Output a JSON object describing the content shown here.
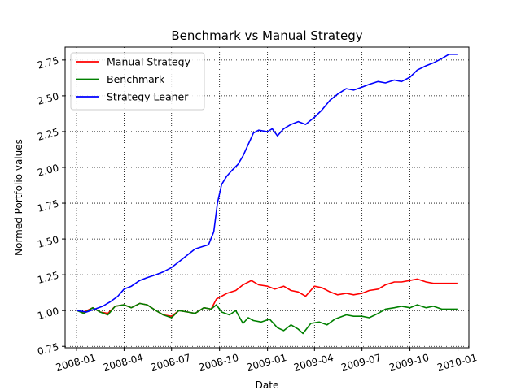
{
  "chart_data": {
    "type": "line",
    "title": "Benchmark vs Manual Strategy",
    "xlabel": "Date",
    "ylabel": "Normed Portfolio values",
    "grid": true,
    "legend_placement": "top-left",
    "x_ticks": [
      "2008-01",
      "2008-04",
      "2008-07",
      "2008-10",
      "2009-01",
      "2009-04",
      "2009-07",
      "2009-10",
      "2010-01"
    ],
    "y_ticks": [
      "0.75",
      "1.00",
      "1.25",
      "1.50",
      "1.75",
      "2.00",
      "2.25",
      "2.50",
      "2.75"
    ],
    "ylim": [
      0.74,
      2.84
    ],
    "xlim": [
      "2007-12-10",
      "2010-01-22"
    ],
    "series": [
      {
        "name": "Manual Strategy",
        "color": "#ff0000",
        "points": [
          [
            "2008-01-02",
            1.0
          ],
          [
            "2008-01-15",
            0.99
          ],
          [
            "2008-02-01",
            1.02
          ],
          [
            "2008-02-15",
            0.99
          ],
          [
            "2008-03-01",
            0.98
          ],
          [
            "2008-03-15",
            1.03
          ],
          [
            "2008-04-01",
            1.04
          ],
          [
            "2008-04-15",
            1.02
          ],
          [
            "2008-05-01",
            1.05
          ],
          [
            "2008-05-15",
            1.04
          ],
          [
            "2008-06-01",
            1.0
          ],
          [
            "2008-06-15",
            0.97
          ],
          [
            "2008-07-01",
            0.96
          ],
          [
            "2008-07-15",
            1.0
          ],
          [
            "2008-08-01",
            0.99
          ],
          [
            "2008-08-15",
            0.98
          ],
          [
            "2008-09-01",
            1.02
          ],
          [
            "2008-09-15",
            1.01
          ],
          [
            "2008-09-25",
            1.08
          ],
          [
            "2008-10-05",
            1.1
          ],
          [
            "2008-10-15",
            1.12
          ],
          [
            "2008-11-01",
            1.14
          ],
          [
            "2008-11-15",
            1.18
          ],
          [
            "2008-12-01",
            1.21
          ],
          [
            "2008-12-15",
            1.18
          ],
          [
            "2009-01-01",
            1.17
          ],
          [
            "2009-01-15",
            1.15
          ],
          [
            "2009-02-01",
            1.17
          ],
          [
            "2009-02-15",
            1.14
          ],
          [
            "2009-03-01",
            1.13
          ],
          [
            "2009-03-15",
            1.1
          ],
          [
            "2009-04-01",
            1.17
          ],
          [
            "2009-04-15",
            1.16
          ],
          [
            "2009-05-01",
            1.13
          ],
          [
            "2009-05-15",
            1.11
          ],
          [
            "2009-06-01",
            1.12
          ],
          [
            "2009-06-15",
            1.11
          ],
          [
            "2009-07-01",
            1.12
          ],
          [
            "2009-07-15",
            1.14
          ],
          [
            "2009-08-01",
            1.15
          ],
          [
            "2009-08-15",
            1.18
          ],
          [
            "2009-09-01",
            1.2
          ],
          [
            "2009-09-15",
            1.2
          ],
          [
            "2009-10-01",
            1.21
          ],
          [
            "2009-10-15",
            1.22
          ],
          [
            "2009-11-01",
            1.2
          ],
          [
            "2009-11-15",
            1.19
          ],
          [
            "2009-12-01",
            1.19
          ],
          [
            "2009-12-31",
            1.19
          ]
        ]
      },
      {
        "name": "Benchmark",
        "color": "#008000",
        "points": [
          [
            "2008-01-02",
            1.0
          ],
          [
            "2008-01-15",
            0.98
          ],
          [
            "2008-02-01",
            1.02
          ],
          [
            "2008-02-15",
            0.99
          ],
          [
            "2008-03-01",
            0.97
          ],
          [
            "2008-03-15",
            1.03
          ],
          [
            "2008-04-01",
            1.04
          ],
          [
            "2008-04-15",
            1.02
          ],
          [
            "2008-05-01",
            1.05
          ],
          [
            "2008-05-15",
            1.04
          ],
          [
            "2008-06-01",
            1.0
          ],
          [
            "2008-06-15",
            0.97
          ],
          [
            "2008-07-01",
            0.95
          ],
          [
            "2008-07-15",
            1.0
          ],
          [
            "2008-08-01",
            0.99
          ],
          [
            "2008-08-15",
            0.98
          ],
          [
            "2008-09-01",
            1.02
          ],
          [
            "2008-09-15",
            1.01
          ],
          [
            "2008-09-25",
            1.04
          ],
          [
            "2008-10-05",
            0.99
          ],
          [
            "2008-10-20",
            0.97
          ],
          [
            "2008-11-01",
            1.0
          ],
          [
            "2008-11-15",
            0.91
          ],
          [
            "2008-11-25",
            0.95
          ],
          [
            "2008-12-05",
            0.93
          ],
          [
            "2008-12-20",
            0.92
          ],
          [
            "2009-01-05",
            0.94
          ],
          [
            "2009-01-20",
            0.88
          ],
          [
            "2009-02-01",
            0.86
          ],
          [
            "2009-02-15",
            0.9
          ],
          [
            "2009-03-01",
            0.87
          ],
          [
            "2009-03-10",
            0.84
          ],
          [
            "2009-03-25",
            0.91
          ],
          [
            "2009-04-10",
            0.92
          ],
          [
            "2009-04-25",
            0.9
          ],
          [
            "2009-05-10",
            0.94
          ],
          [
            "2009-06-01",
            0.97
          ],
          [
            "2009-06-15",
            0.96
          ],
          [
            "2009-07-01",
            0.96
          ],
          [
            "2009-07-15",
            0.95
          ],
          [
            "2009-08-01",
            0.98
          ],
          [
            "2009-08-15",
            1.01
          ],
          [
            "2009-09-01",
            1.02
          ],
          [
            "2009-09-15",
            1.03
          ],
          [
            "2009-10-01",
            1.02
          ],
          [
            "2009-10-15",
            1.04
          ],
          [
            "2009-11-01",
            1.02
          ],
          [
            "2009-11-15",
            1.03
          ],
          [
            "2009-12-01",
            1.01
          ],
          [
            "2009-12-31",
            1.01
          ]
        ]
      },
      {
        "name": "Strategy Leaner",
        "color": "#0000ff",
        "points": [
          [
            "2008-01-02",
            1.0
          ],
          [
            "2008-01-20",
            0.99
          ],
          [
            "2008-02-05",
            1.01
          ],
          [
            "2008-02-20",
            1.03
          ],
          [
            "2008-03-05",
            1.06
          ],
          [
            "2008-03-20",
            1.1
          ],
          [
            "2008-04-01",
            1.15
          ],
          [
            "2008-04-15",
            1.17
          ],
          [
            "2008-05-01",
            1.21
          ],
          [
            "2008-05-15",
            1.23
          ],
          [
            "2008-06-01",
            1.25
          ],
          [
            "2008-06-15",
            1.27
          ],
          [
            "2008-07-01",
            1.3
          ],
          [
            "2008-07-15",
            1.34
          ],
          [
            "2008-08-01",
            1.39
          ],
          [
            "2008-08-15",
            1.43
          ],
          [
            "2008-09-01",
            1.45
          ],
          [
            "2008-09-10",
            1.46
          ],
          [
            "2008-09-20",
            1.55
          ],
          [
            "2008-09-27",
            1.75
          ],
          [
            "2008-10-05",
            1.88
          ],
          [
            "2008-10-15",
            1.94
          ],
          [
            "2008-10-25",
            1.98
          ],
          [
            "2008-11-05",
            2.02
          ],
          [
            "2008-11-15",
            2.08
          ],
          [
            "2008-11-25",
            2.16
          ],
          [
            "2008-12-05",
            2.24
          ],
          [
            "2008-12-15",
            2.26
          ],
          [
            "2009-01-01",
            2.25
          ],
          [
            "2009-01-10",
            2.27
          ],
          [
            "2009-01-20",
            2.22
          ],
          [
            "2009-02-01",
            2.27
          ],
          [
            "2009-02-15",
            2.3
          ],
          [
            "2009-03-01",
            2.32
          ],
          [
            "2009-03-15",
            2.3
          ],
          [
            "2009-04-01",
            2.35
          ],
          [
            "2009-04-15",
            2.4
          ],
          [
            "2009-05-01",
            2.47
          ],
          [
            "2009-05-15",
            2.51
          ],
          [
            "2009-06-01",
            2.55
          ],
          [
            "2009-06-15",
            2.54
          ],
          [
            "2009-07-01",
            2.56
          ],
          [
            "2009-07-15",
            2.58
          ],
          [
            "2009-08-01",
            2.6
          ],
          [
            "2009-08-15",
            2.59
          ],
          [
            "2009-09-01",
            2.61
          ],
          [
            "2009-09-15",
            2.6
          ],
          [
            "2009-10-01",
            2.63
          ],
          [
            "2009-10-15",
            2.68
          ],
          [
            "2009-11-01",
            2.71
          ],
          [
            "2009-11-15",
            2.73
          ],
          [
            "2009-12-01",
            2.76
          ],
          [
            "2009-12-15",
            2.79
          ],
          [
            "2009-12-31",
            2.79
          ]
        ]
      }
    ]
  }
}
